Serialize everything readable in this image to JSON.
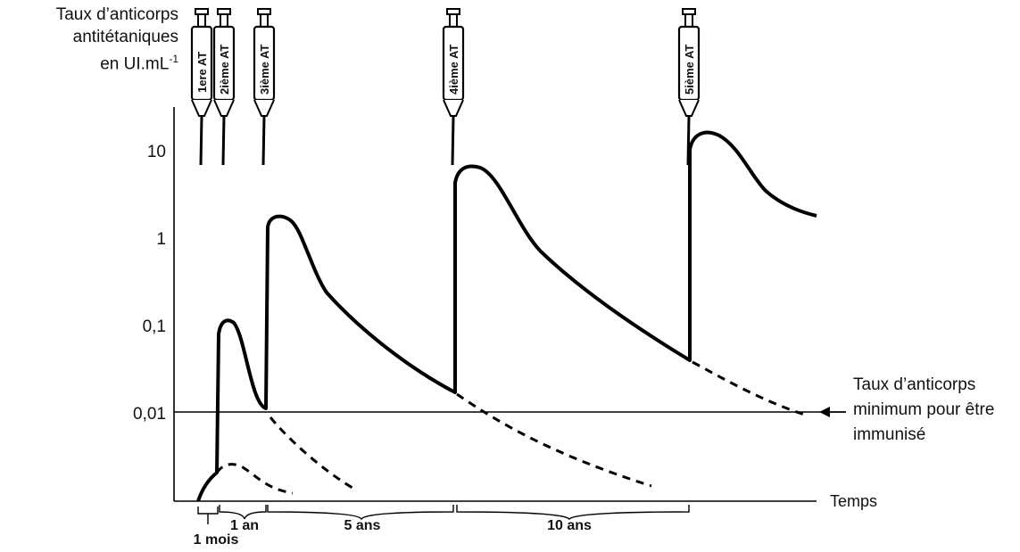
{
  "chart_data": {
    "type": "line",
    "y_scale": "log",
    "ylabel": "Taux d'anticorps antitétaniques en UI.mL",
    "ylabel_lines": [
      "Taux d’anticorps",
      "antitétaniques",
      "en UI.mL"
    ],
    "ylabel_exponent": "-1",
    "xlabel": "Temps",
    "y_ticks": [
      {
        "value": 10,
        "label": "10"
      },
      {
        "value": 1,
        "label": "1"
      },
      {
        "value": 0.1,
        "label": "0,1"
      },
      {
        "value": 0.01,
        "label": "0,01"
      }
    ],
    "threshold": {
      "value": 0.01,
      "label_lines": [
        "Taux d’anticorps",
        "minimum pour être",
        "immunisé"
      ]
    },
    "injections": [
      {
        "label": "1ere AT"
      },
      {
        "label": "2ième AT"
      },
      {
        "label": "3ième AT"
      },
      {
        "label": "4ième AT"
      },
      {
        "label": "5ième AT"
      }
    ],
    "intervals": [
      {
        "label": "1 mois"
      },
      {
        "label": "1 an"
      },
      {
        "label": "5 ans"
      },
      {
        "label": "10 ans"
      }
    ],
    "series": [
      {
        "style": "solid",
        "peaks": [
          0.11,
          1.8,
          6.5,
          16
        ],
        "troughs_before_next_dose": [
          0.011,
          0.017,
          0.038
        ]
      },
      {
        "style": "dashed",
        "note_free": true
      }
    ],
    "colors": {
      "line": "#000000",
      "text": "#111111"
    }
  }
}
